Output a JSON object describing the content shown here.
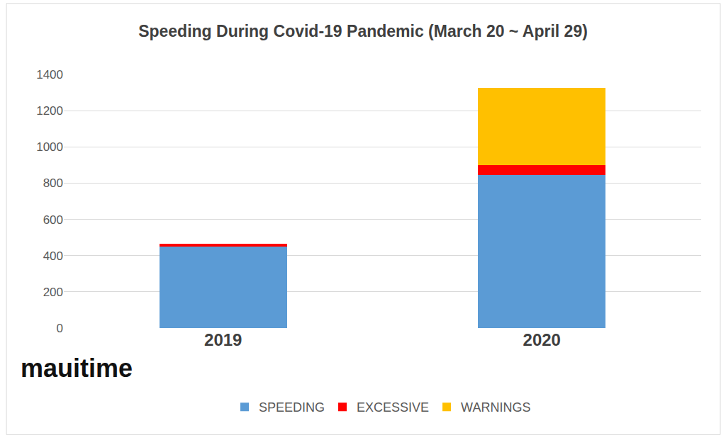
{
  "chart_data": {
    "type": "bar",
    "title": "Speeding During Covid-19 Pandemic (March 20 ~ April 29)",
    "categories": [
      "2019",
      "2020"
    ],
    "series": [
      {
        "name": "SPEEDING",
        "color": "#5b9bd5",
        "values": [
          450,
          845
        ]
      },
      {
        "name": "EXCESSIVE",
        "color": "#ff0000",
        "values": [
          17,
          55
        ]
      },
      {
        "name": "WARNINGS",
        "color": "#ffc000",
        "values": [
          0,
          425
        ]
      }
    ],
    "stacked": true,
    "ylim": [
      0,
      1400
    ],
    "yticks": [
      0,
      200,
      400,
      600,
      800,
      1000,
      1200,
      1400
    ],
    "grid": true,
    "legend": "bottom",
    "annotations": [
      "mauitime"
    ]
  }
}
